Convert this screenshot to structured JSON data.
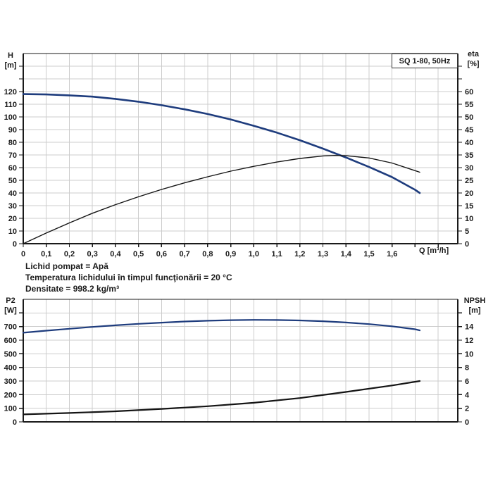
{
  "figure": {
    "conditions": [
      "Lichid pompat = Apă",
      "Temperatura lichidului în timpul funcţionării = 20 °C",
      "Densitate = 998.2 kg/m³"
    ]
  },
  "chart_data": [
    {
      "id": "qh-eta-chart",
      "type": "line",
      "title": "SQ 1-80, 50Hz",
      "grid": "on",
      "x_axis": {
        "label": "Q [m³/h]",
        "min": 0,
        "max": 1.885,
        "grid_step": 0.1,
        "grid_until": 1.8,
        "tick_labels": [
          "0",
          "0,1",
          "0,2",
          "0,3",
          "0,4",
          "0,5",
          "0,6",
          "0,7",
          "0,8",
          "0,9",
          "1,0",
          "1,1",
          "1,2",
          "1,3",
          "1,4",
          "1,5",
          "1,6"
        ]
      },
      "left_axis": {
        "title_lines": [
          "H",
          "[m]"
        ],
        "min": 0,
        "max": 150,
        "step": 10,
        "tick_labels": [
          "0",
          "10",
          "20",
          "30",
          "40",
          "50",
          "60",
          "70",
          "80",
          "90",
          "100",
          "110",
          "120"
        ]
      },
      "right_axis": {
        "title_lines": [
          "eta",
          "[%]"
        ],
        "min": 0,
        "max": 75,
        "step": 5,
        "tick_labels": [
          "0",
          "5",
          "10",
          "15",
          "20",
          "25",
          "30",
          "35",
          "40",
          "45",
          "50",
          "55",
          "60"
        ]
      },
      "series": [
        {
          "name": "head-curve",
          "axis": "left",
          "color": "#1e3c7d",
          "width": 2.6,
          "points": [
            [
              0,
              118
            ],
            [
              0.1,
              117.7
            ],
            [
              0.2,
              117
            ],
            [
              0.3,
              116
            ],
            [
              0.4,
              114.2
            ],
            [
              0.5,
              112
            ],
            [
              0.6,
              109.2
            ],
            [
              0.7,
              106
            ],
            [
              0.8,
              102.3
            ],
            [
              0.9,
              98
            ],
            [
              1,
              93
            ],
            [
              1.1,
              87.6
            ],
            [
              1.2,
              81.6
            ],
            [
              1.3,
              75
            ],
            [
              1.4,
              68
            ],
            [
              1.5,
              60.5
            ],
            [
              1.6,
              52.5
            ],
            [
              1.7,
              42.5
            ],
            [
              1.72,
              40
            ]
          ]
        },
        {
          "name": "efficiency-curve",
          "axis": "right",
          "color": "#141414",
          "width": 1.4,
          "points": [
            [
              0,
              0
            ],
            [
              0.1,
              4.2
            ],
            [
              0.2,
              8.2
            ],
            [
              0.3,
              12
            ],
            [
              0.4,
              15.4
            ],
            [
              0.5,
              18.5
            ],
            [
              0.6,
              21.4
            ],
            [
              0.7,
              24
            ],
            [
              0.8,
              26.4
            ],
            [
              0.9,
              28.6
            ],
            [
              1,
              30.5
            ],
            [
              1.1,
              32.2
            ],
            [
              1.2,
              33.6
            ],
            [
              1.3,
              34.6
            ],
            [
              1.35,
              34.8
            ],
            [
              1.4,
              34.7
            ],
            [
              1.5,
              33.8
            ],
            [
              1.6,
              31.8
            ],
            [
              1.7,
              28.8
            ],
            [
              1.72,
              28.2
            ]
          ]
        }
      ]
    },
    {
      "id": "p2-npsh-chart",
      "type": "line",
      "title": "",
      "grid": "on",
      "x_axis": {
        "label": "",
        "min": 0,
        "max": 1.885,
        "grid_step": 0.1,
        "grid_until": 1.8,
        "tick_labels": []
      },
      "left_axis": {
        "title_lines": [
          "P2",
          "[W]"
        ],
        "min": 0,
        "max": 900,
        "step": 100,
        "tick_labels": [
          "0",
          "100",
          "200",
          "300",
          "400",
          "500",
          "600",
          "700"
        ]
      },
      "right_axis": {
        "title_lines": [
          "NPSH",
          "[m]"
        ],
        "min": 0,
        "max": 18,
        "step": 2,
        "tick_labels": [
          "0",
          "2",
          "4",
          "6",
          "8",
          "10",
          "12",
          "14"
        ]
      },
      "series": [
        {
          "name": "power-curve",
          "axis": "left",
          "color": "#1e3c7d",
          "width": 2.2,
          "points": [
            [
              0,
              655
            ],
            [
              0.1,
              670
            ],
            [
              0.2,
              684
            ],
            [
              0.3,
              697
            ],
            [
              0.4,
              709
            ],
            [
              0.5,
              720
            ],
            [
              0.6,
              729
            ],
            [
              0.7,
              737
            ],
            [
              0.8,
              743
            ],
            [
              0.9,
              747
            ],
            [
              1,
              749
            ],
            [
              1.1,
              748
            ],
            [
              1.2,
              745
            ],
            [
              1.3,
              739
            ],
            [
              1.4,
              730
            ],
            [
              1.5,
              718
            ],
            [
              1.6,
              702
            ],
            [
              1.7,
              680
            ],
            [
              1.72,
              672
            ]
          ]
        },
        {
          "name": "npsh-curve",
          "axis": "right",
          "color": "#141414",
          "width": 2.2,
          "points": [
            [
              0,
              1.1
            ],
            [
              0.2,
              1.3
            ],
            [
              0.4,
              1.55
            ],
            [
              0.6,
              1.9
            ],
            [
              0.8,
              2.3
            ],
            [
              1,
              2.8
            ],
            [
              1.2,
              3.5
            ],
            [
              1.4,
              4.4
            ],
            [
              1.6,
              5.35
            ],
            [
              1.72,
              6
            ]
          ]
        }
      ]
    }
  ]
}
